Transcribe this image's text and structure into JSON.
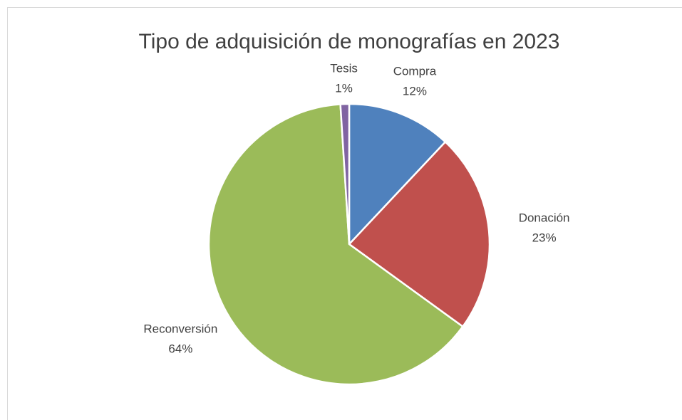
{
  "chart_data": {
    "type": "pie",
    "title": "Tipo de adquisición de monografías en 2023",
    "categories": [
      "Compra",
      "Donación",
      "Reconversión",
      "Tesis"
    ],
    "values": [
      12,
      23,
      64,
      1
    ],
    "value_labels": [
      "12%",
      "23%",
      "64%",
      "1%"
    ],
    "colors": [
      "#4f81bd",
      "#c0504d",
      "#9bbb59",
      "#8064a2"
    ]
  }
}
